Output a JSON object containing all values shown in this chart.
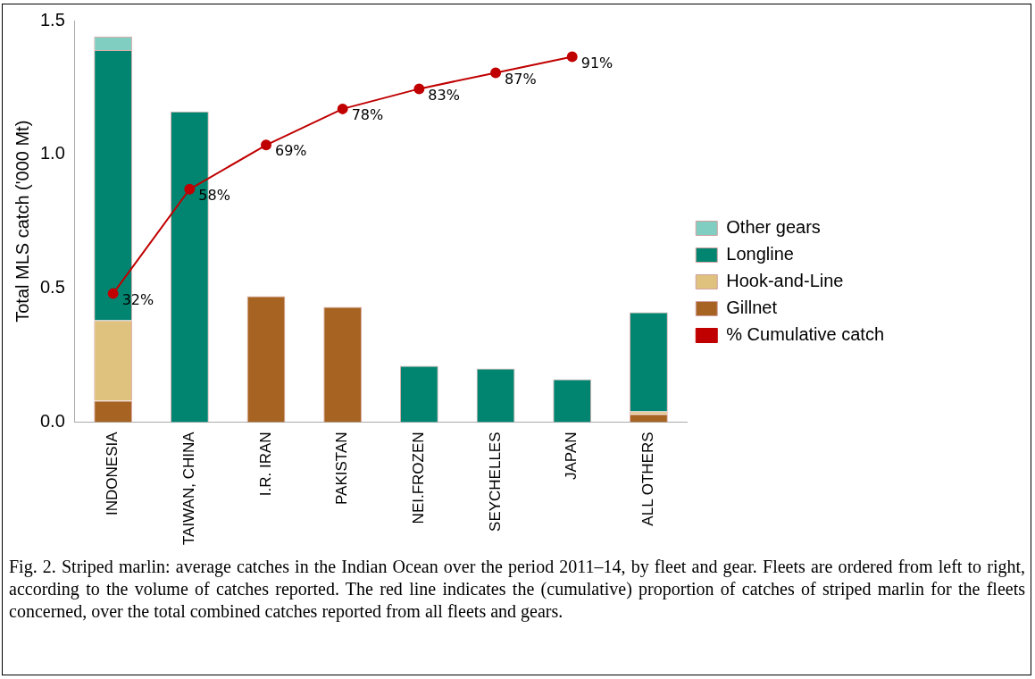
{
  "chart_data": {
    "type": "bar",
    "ylabel": "Total MLS catch ('000 Mt)",
    "categories": [
      "INDONESIA",
      "TAIWAN, CHINA",
      "I.R. IRAN",
      "PAKISTAN",
      "NEI.FROZEN",
      "SEYCHELLES",
      "JAPAN",
      "ALL OTHERS"
    ],
    "stacked": true,
    "series": [
      {
        "name": "Gillnet",
        "color": "#a66321",
        "values": [
          0.08,
          0,
          0.47,
          0.43,
          0,
          0,
          0,
          0.03
        ]
      },
      {
        "name": "Hook-and-Line",
        "color": "#dfc27d",
        "values": [
          0.3,
          0,
          0,
          0,
          0,
          0,
          0,
          0.01
        ]
      },
      {
        "name": "Longline",
        "color": "#018571",
        "values": [
          1.01,
          1.16,
          0,
          0,
          0.21,
          0.2,
          0.16,
          0.37
        ]
      },
      {
        "name": "Other gears",
        "color": "#80cdc1",
        "values": [
          0.05,
          0,
          0,
          0,
          0,
          0,
          0,
          0
        ]
      },
      {
        "name": "% Cumulative catch",
        "type": "line",
        "axis": "y2",
        "color": "#c00000",
        "marker": "circle",
        "values": [
          32,
          58,
          69,
          78,
          83,
          87,
          91,
          null
        ],
        "value_labels": [
          "32%",
          "58%",
          "69%",
          "78%",
          "83%",
          "87%",
          "91%",
          null
        ]
      }
    ],
    "ylim": [
      0,
      1.5
    ],
    "yticks": [
      {
        "value": 0,
        "label": "0.0"
      },
      0.5,
      {
        "value": 1,
        "label": "1.0"
      },
      1.5
    ],
    "y2lim": [
      0,
      100
    ],
    "legend": "right",
    "grid": false,
    "annotations": [
      "Fig. 2. Striped marlin: average catches in the Indian Ocean over the period 2011–14, by fleet and gear. Fleets are ordered from left to right, according to the volume of catches reported. The red line indicates the (cumulative) proportion of catches of striped marlin for the fleets concerned, over the total combined catches reported from all fleets and gears."
    ]
  }
}
